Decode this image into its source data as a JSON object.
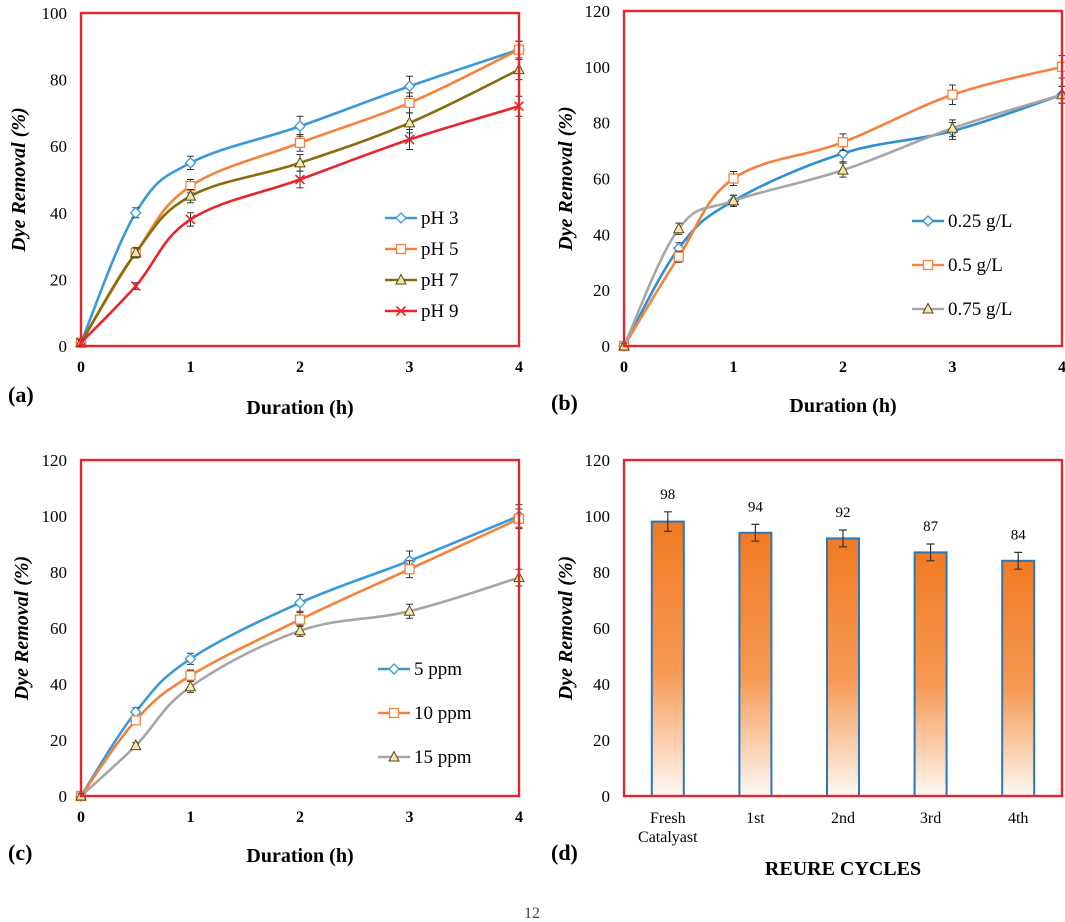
{
  "page_number": "12",
  "chart_data": [
    {
      "id": "a",
      "type": "line",
      "panel_label": "(a)",
      "xlabel": "Duration (h)",
      "ylabel": "Dye Removal (%)",
      "ylim": [
        0,
        100
      ],
      "yticks": [
        0,
        20,
        40,
        60,
        80,
        100
      ],
      "xlim": [
        0,
        4
      ],
      "xticks": [
        0,
        1,
        2,
        3,
        4
      ],
      "x": [
        0,
        0.5,
        1,
        2,
        3,
        4
      ],
      "legend_position": "bottom-right",
      "series": [
        {
          "name": "pH 3",
          "color": "#3a9ad9",
          "marker": "diamond",
          "values": [
            1,
            40,
            55,
            66,
            78,
            89
          ],
          "errors": [
            1,
            1.5,
            2,
            3,
            3,
            2.5
          ]
        },
        {
          "name": "pH 5",
          "color": "#f4823c",
          "marker": "square",
          "values": [
            1,
            28,
            48,
            61,
            73,
            89
          ],
          "errors": [
            1,
            1.5,
            2,
            2.5,
            3,
            2.5
          ]
        },
        {
          "name": "pH 7",
          "color": "#8a6d0b",
          "marker": "triangle",
          "values": [
            1,
            28,
            45,
            55,
            67,
            83
          ],
          "errors": [
            1,
            1.5,
            2,
            2.5,
            3,
            3
          ]
        },
        {
          "name": "pH 9",
          "color": "#e8262a",
          "marker": "x",
          "values": [
            1,
            18,
            38,
            50,
            62,
            72
          ],
          "errors": [
            1,
            1,
            2,
            2.5,
            3,
            3
          ]
        }
      ]
    },
    {
      "id": "b",
      "type": "line",
      "panel_label": "(b)",
      "xlabel": "Duration (h)",
      "ylabel": "Dye Removal (%)",
      "ylim": [
        0,
        120
      ],
      "yticks": [
        0,
        20,
        40,
        60,
        80,
        100,
        120
      ],
      "xlim": [
        0,
        4
      ],
      "xticks": [
        0,
        1,
        2,
        3,
        4
      ],
      "x": [
        0,
        0.5,
        1,
        2,
        3,
        4
      ],
      "legend_position": "bottom-right",
      "series": [
        {
          "name": "0.25 g/L",
          "color": "#2f8fd0",
          "marker": "diamond",
          "values": [
            0,
            35,
            52,
            69,
            77,
            90
          ],
          "errors": [
            1,
            2,
            2,
            3,
            3,
            3
          ]
        },
        {
          "name": "0.5 g/L",
          "color": "#f4823c",
          "marker": "square",
          "values": [
            0,
            32,
            60,
            73,
            90,
            100
          ],
          "errors": [
            1,
            2,
            2.5,
            3,
            3.5,
            4
          ]
        },
        {
          "name": "0.75 g/L",
          "color": "#a6a6a6",
          "marker": "triangle",
          "values": [
            0,
            42,
            52,
            63,
            78,
            90
          ],
          "errors": [
            1,
            2,
            2,
            2.5,
            3,
            3
          ]
        }
      ]
    },
    {
      "id": "c",
      "type": "line",
      "panel_label": "(c)",
      "xlabel": "Duration (h)",
      "ylabel": "Dye Removal (%)",
      "ylim": [
        0,
        120
      ],
      "yticks": [
        0,
        20,
        40,
        60,
        80,
        100,
        120
      ],
      "xlim": [
        0,
        4
      ],
      "xticks": [
        0,
        1,
        2,
        3,
        4
      ],
      "x": [
        0,
        0.5,
        1,
        2,
        3,
        4
      ],
      "legend_position": "bottom-right",
      "series": [
        {
          "name": "5 ppm",
          "color": "#3a9ad9",
          "marker": "diamond",
          "values": [
            0,
            30,
            49,
            69,
            84,
            100
          ],
          "errors": [
            1,
            1.5,
            2,
            3,
            3.5,
            4
          ]
        },
        {
          "name": "10 ppm",
          "color": "#f4823c",
          "marker": "square",
          "values": [
            0,
            27,
            43,
            63,
            81,
            99
          ],
          "errors": [
            1,
            1.5,
            2,
            2.5,
            3,
            3.5
          ]
        },
        {
          "name": "15 ppm",
          "color": "#a6a6a6",
          "marker": "triangle",
          "values": [
            0,
            18,
            39,
            59,
            66,
            78
          ],
          "errors": [
            1,
            1,
            2,
            2,
            2.5,
            3
          ]
        }
      ]
    },
    {
      "id": "d",
      "type": "bar",
      "panel_label": "(d)",
      "xlabel": "REURE CYCLES",
      "ylabel": "Dye Removal (%)",
      "ylim": [
        0,
        120
      ],
      "yticks": [
        0,
        20,
        40,
        60,
        80,
        100,
        120
      ],
      "categories": [
        [
          "Fresh",
          "Catalyast"
        ],
        [
          "1st"
        ],
        [
          "2nd"
        ],
        [
          "3rd"
        ],
        [
          "4th"
        ]
      ],
      "values": [
        98,
        94,
        92,
        87,
        84
      ],
      "errors": [
        3.5,
        3,
        3,
        3,
        3
      ],
      "bar_color": "#f4823c",
      "bar_outline": "#2e75b6"
    }
  ]
}
